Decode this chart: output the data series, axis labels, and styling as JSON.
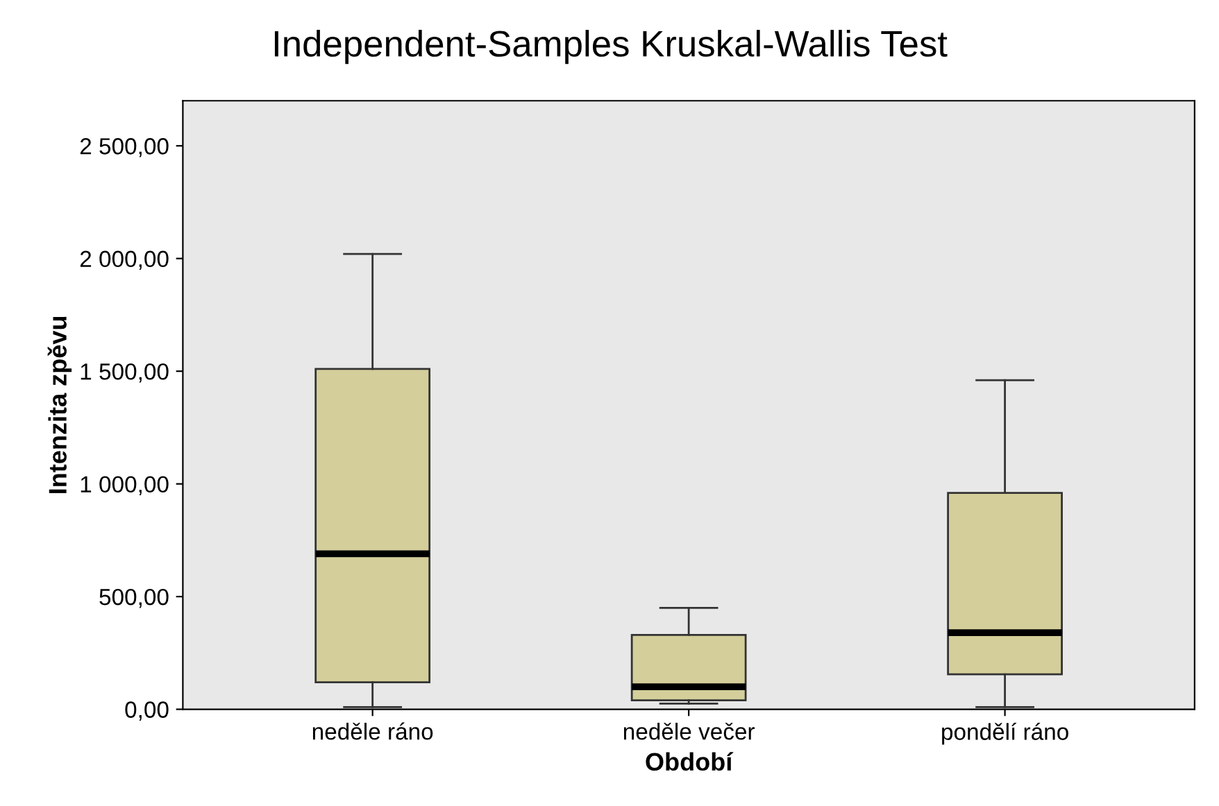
{
  "chart_data": {
    "type": "box",
    "title": "Independent-Samples Kruskal-Wallis Test",
    "xlabel": "Období",
    "ylabel": "Intenzita zpěvu",
    "categories": [
      "neděle ráno",
      "neděle večer",
      "pondělí ráno"
    ],
    "boxes": [
      {
        "low": 10,
        "q1": 120,
        "median": 690,
        "q3": 1510,
        "high": 2020
      },
      {
        "low": 25,
        "q1": 40,
        "median": 100,
        "q3": 330,
        "high": 450
      },
      {
        "low": 10,
        "q1": 155,
        "median": 340,
        "q3": 960,
        "high": 1460
      }
    ],
    "color": "#d3ce9a",
    "ylim": [
      0,
      2700
    ],
    "yticks": [
      {
        "value": 0,
        "label": "0,00"
      },
      {
        "value": 500,
        "label": "500,00"
      },
      {
        "value": 1000,
        "label": "1 000,00"
      },
      {
        "value": 1500,
        "label": "1 500,00"
      },
      {
        "value": 2000,
        "label": "2 000,00"
      },
      {
        "value": 2500,
        "label": "2 500,00"
      }
    ],
    "grid": false
  }
}
